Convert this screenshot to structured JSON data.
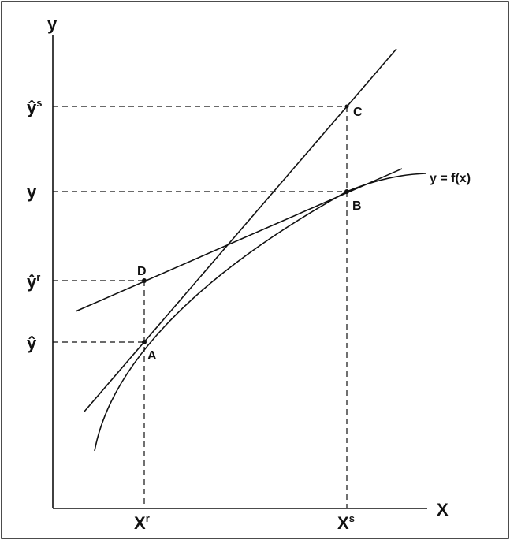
{
  "axes": {
    "y_label": "y",
    "x_label": "X"
  },
  "y_labels": [
    {
      "base": "ŷ",
      "sup": "s"
    },
    {
      "base": "y"
    },
    {
      "base": "ŷ",
      "sup": "r"
    },
    {
      "base": "ŷ"
    }
  ],
  "x_labels": [
    {
      "base": "X",
      "sup": "r"
    },
    {
      "base": "X",
      "sup": "s"
    }
  ],
  "points": [
    "A",
    "B",
    "C",
    "D"
  ],
  "curve_label": "y = f(x)"
}
